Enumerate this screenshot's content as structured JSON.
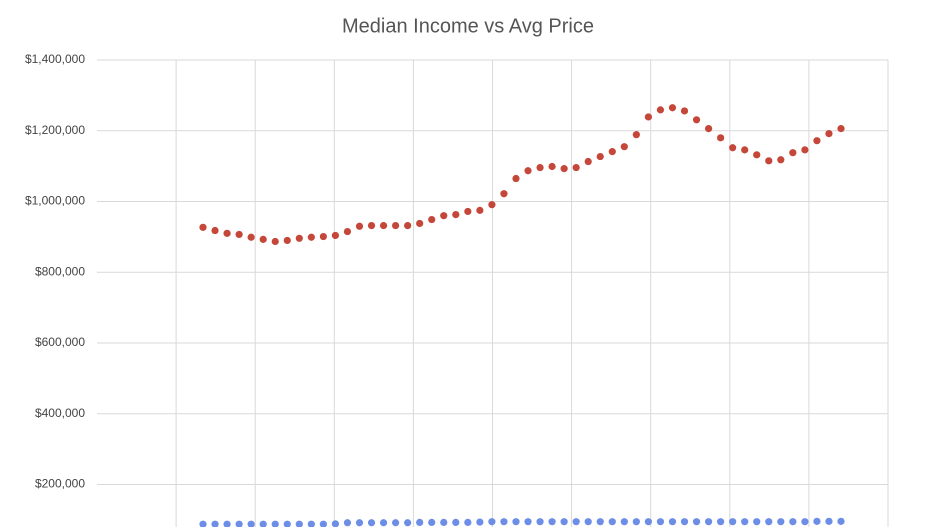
{
  "chart_data": {
    "type": "scatter",
    "title": "Median Income vs Avg Price",
    "categories": [
      null,
      null,
      null,
      null,
      null,
      null,
      null,
      null,
      null,
      null,
      null,
      null,
      null,
      null,
      null,
      null,
      null,
      null,
      null,
      null,
      null,
      null,
      null,
      null,
      null,
      null,
      null,
      null,
      null,
      null,
      null,
      null,
      null,
      null,
      null,
      null,
      null,
      null,
      null,
      null,
      null,
      null,
      null,
      null,
      null,
      null,
      null,
      null,
      null,
      null,
      null,
      null,
      null,
      null
    ],
    "series": [
      {
        "color": "#c5473a",
        "values": [
          927000,
          918000,
          910000,
          907000,
          899000,
          893000,
          887000,
          890000,
          896000,
          899000,
          901000,
          904000,
          915000,
          930000,
          932000,
          932000,
          932000,
          932000,
          938000,
          949000,
          960000,
          963000,
          972000,
          975000,
          991000,
          1022000,
          1065000,
          1087000,
          1096000,
          1099000,
          1093000,
          1096000,
          1113000,
          1127000,
          1141000,
          1155000,
          1189000,
          1239000,
          1259000,
          1265000,
          1256000,
          1231000,
          1206000,
          1180000,
          1152000,
          1146000,
          1132000,
          1115000,
          1118000,
          1138000,
          1146000,
          1172000,
          1192000,
          1206000
        ]
      },
      {
        "color": "#6d8ee6",
        "values": [
          88000,
          88000,
          88000,
          88000,
          88000,
          88000,
          88000,
          88000,
          88000,
          88000,
          88000,
          89000,
          92000,
          92000,
          92000,
          92000,
          92000,
          92000,
          93000,
          93000,
          93000,
          93000,
          93000,
          94000,
          95000,
          95000,
          95000,
          95000,
          95000,
          95000,
          95000,
          95000,
          95000,
          95000,
          95000,
          95000,
          95000,
          95000,
          95000,
          95000,
          95000,
          95000,
          95000,
          95000,
          95000,
          95000,
          95000,
          95000,
          95000,
          95000,
          95000,
          96000,
          96000,
          96000
        ]
      }
    ],
    "ylim": [
      80000,
      1400000
    ],
    "yticks": [
      {
        "value": 200000,
        "label": "$200,000"
      },
      {
        "value": 400000,
        "label": "$400,000"
      },
      {
        "value": 600000,
        "label": "$600,000"
      },
      {
        "value": 800000,
        "label": "$800,000"
      },
      {
        "value": 1000000,
        "label": "$1,000,000"
      },
      {
        "value": 1200000,
        "label": "$1,200,000"
      },
      {
        "value": 1400000,
        "label": "$1,400,000"
      }
    ],
    "grid": true
  }
}
